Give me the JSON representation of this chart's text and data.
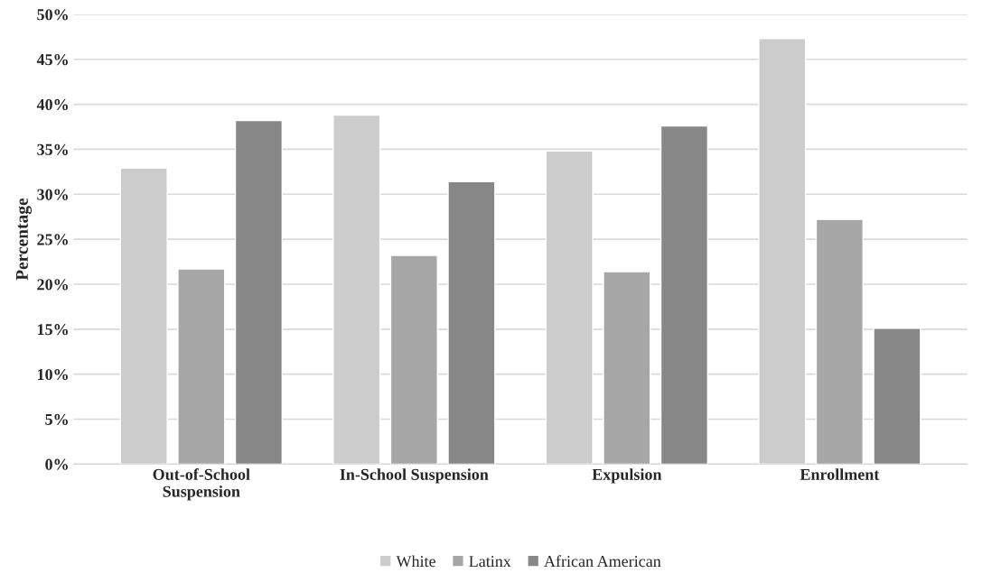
{
  "chart_data": {
    "type": "bar",
    "ylabel": "Percentage",
    "categories": [
      "Out-of-School\nSuspension",
      "In-School Suspension",
      "Expulsion",
      "Enrollment"
    ],
    "series": [
      {
        "name": "White",
        "color": "#cccccc",
        "values": [
          32.9,
          38.8,
          34.8,
          47.3
        ]
      },
      {
        "name": "Latinx",
        "color": "#a6a6a6",
        "values": [
          21.7,
          23.2,
          21.4,
          27.2
        ]
      },
      {
        "name": "African American",
        "color": "#878787",
        "values": [
          38.2,
          31.4,
          37.6,
          15.1
        ]
      }
    ],
    "ylim": [
      0,
      50
    ],
    "yticks": [
      {
        "value": 0,
        "label": "0%"
      },
      {
        "value": 5,
        "label": "5%"
      },
      {
        "value": 10,
        "label": "10%"
      },
      {
        "value": 15,
        "label": "15%"
      },
      {
        "value": 20,
        "label": "20%"
      },
      {
        "value": 25,
        "label": "25%"
      },
      {
        "value": 30,
        "label": "30%"
      },
      {
        "value": 35,
        "label": "35%"
      },
      {
        "value": 40,
        "label": "40%"
      },
      {
        "value": 45,
        "label": "45%"
      },
      {
        "value": 50,
        "label": "50%"
      }
    ],
    "grid": "y",
    "legend": "bottom"
  }
}
